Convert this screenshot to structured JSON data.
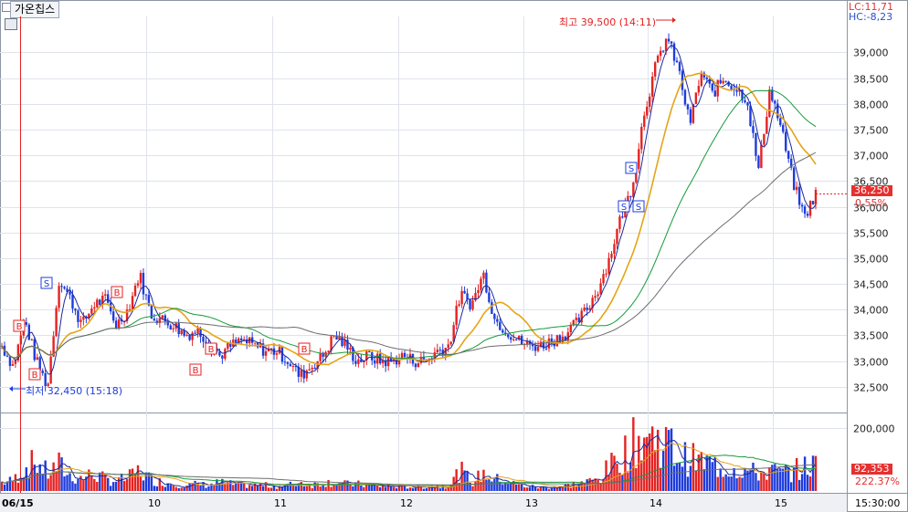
{
  "stock_name": "가온칩스",
  "labels": {
    "lc": "LC:11,71",
    "hc": "HC:-8,23"
  },
  "high_annotation": "최고 39,500 (14:11)",
  "low_annotation": "최저 32,450 (15:18)",
  "price_tag": "36,250",
  "change_pct": "0.55%",
  "volume_tag": "92,353",
  "volume_pct": "222.37%",
  "colors": {
    "up": "#e52222",
    "down": "#1e3cdc",
    "ma_fast": "#1b2a9c",
    "ma_mid": "#e5a417",
    "ma_slow": "#159a3a",
    "ma_long": "#6d6d6d",
    "highlow": "#e52222"
  },
  "chart_data": {
    "type": "candlestick",
    "price_axis": {
      "min": 32000,
      "max": 39700,
      "ticks": [
        32500,
        33000,
        33500,
        34000,
        34500,
        35000,
        35500,
        36000,
        36500,
        37000,
        37500,
        38000,
        38500,
        39000
      ],
      "tick_labels": [
        "32,500",
        "33,000",
        "33,500",
        "34,000",
        "34,500",
        "35,000",
        "35,500",
        "36,000",
        "36,500",
        "37,000",
        "37,500",
        "38,000",
        "38,500",
        "39,000"
      ]
    },
    "volume_axis": {
      "max": 240000,
      "ticks": [
        200000
      ],
      "tick_labels": [
        "200,000"
      ]
    },
    "x_labels": [
      "06/15",
      "10",
      "11",
      "12",
      "13",
      "14",
      "15"
    ],
    "time_label": "15:30:00",
    "session_segments": [
      {
        "label": "06/15",
        "points": [
          [
            33300,
            0.15
          ],
          [
            32900,
            0.18
          ],
          [
            33800,
            0.4
          ],
          [
            33000,
            0.5
          ],
          [
            32500,
            0.3
          ],
          [
            34600,
            0.45
          ],
          [
            34200,
            0.25
          ],
          [
            33700,
            0.22
          ],
          [
            34100,
            0.3
          ],
          [
            34200,
            0.2
          ],
          [
            33700,
            0.18
          ],
          [
            34000,
            0.22
          ],
          [
            34700,
            0.35
          ],
          [
            33900,
            0.2
          ],
          [
            33800,
            0.15
          ]
        ]
      },
      {
        "label": "10",
        "points": [
          [
            33700,
            0.12
          ],
          [
            33500,
            0.1
          ],
          [
            33600,
            0.12
          ],
          [
            33400,
            0.1
          ],
          [
            33100,
            0.15
          ],
          [
            33300,
            0.12
          ],
          [
            33400,
            0.1
          ],
          [
            33300,
            0.1
          ],
          [
            33200,
            0.1
          ],
          [
            33200,
            0.08
          ]
        ]
      },
      {
        "label": "11",
        "points": [
          [
            33000,
            0.1
          ],
          [
            32700,
            0.15
          ],
          [
            32900,
            0.1
          ],
          [
            33100,
            0.15
          ],
          [
            33500,
            0.15
          ],
          [
            33300,
            0.12
          ],
          [
            33000,
            0.12
          ],
          [
            33100,
            0.1
          ],
          [
            33000,
            0.08
          ],
          [
            33000,
            0.08
          ]
        ]
      },
      {
        "label": "12",
        "points": [
          [
            33100,
            0.08
          ],
          [
            33000,
            0.07
          ],
          [
            33000,
            0.08
          ],
          [
            33200,
            0.08
          ],
          [
            33300,
            0.1
          ],
          [
            34300,
            0.35
          ],
          [
            34100,
            0.15
          ],
          [
            34700,
            0.3
          ],
          [
            33800,
            0.2
          ],
          [
            33600,
            0.18
          ]
        ]
      },
      {
        "label": "13",
        "points": [
          [
            33400,
            0.1
          ],
          [
            33300,
            0.08
          ],
          [
            33300,
            0.06
          ],
          [
            33400,
            0.07
          ],
          [
            33500,
            0.08
          ],
          [
            33700,
            0.12
          ],
          [
            34000,
            0.15
          ],
          [
            34400,
            0.2
          ],
          [
            35000,
            0.4
          ],
          [
            35800,
            0.6
          ],
          [
            36400,
            0.8
          ],
          [
            37800,
            0.95
          ]
        ]
      },
      {
        "label": "14",
        "points": [
          [
            38700,
            0.9
          ],
          [
            39300,
            0.85
          ],
          [
            38700,
            0.6
          ],
          [
            37600,
            0.55
          ],
          [
            38600,
            0.5
          ],
          [
            38200,
            0.45
          ],
          [
            38500,
            0.4
          ],
          [
            38300,
            0.4
          ],
          [
            38100,
            0.35
          ],
          [
            36700,
            0.3
          ],
          [
            38300,
            0.35
          ],
          [
            37500,
            0.3
          ],
          [
            36500,
            0.35
          ],
          [
            35800,
            0.4
          ],
          [
            36250,
            0.45
          ]
        ]
      }
    ],
    "markers": [
      {
        "type": "B",
        "position": "below",
        "label": "B"
      },
      {
        "type": "B",
        "position": "below",
        "label": "B"
      },
      {
        "type": "S",
        "position": "above",
        "label": "S"
      },
      {
        "type": "B",
        "position": "below",
        "label": "B"
      },
      {
        "type": "B",
        "position": "below",
        "label": "B"
      },
      {
        "type": "B",
        "position": "below",
        "label": "B"
      },
      {
        "type": "B",
        "position": "below",
        "label": "B"
      },
      {
        "type": "S",
        "position": "above",
        "label": "S"
      },
      {
        "type": "S",
        "position": "above",
        "label": "S"
      },
      {
        "type": "S",
        "position": "above",
        "label": "S"
      }
    ],
    "moving_averages": [
      "fast",
      "mid",
      "slow",
      "long"
    ],
    "last_price": 36250,
    "high": 39500,
    "low": 32450
  }
}
